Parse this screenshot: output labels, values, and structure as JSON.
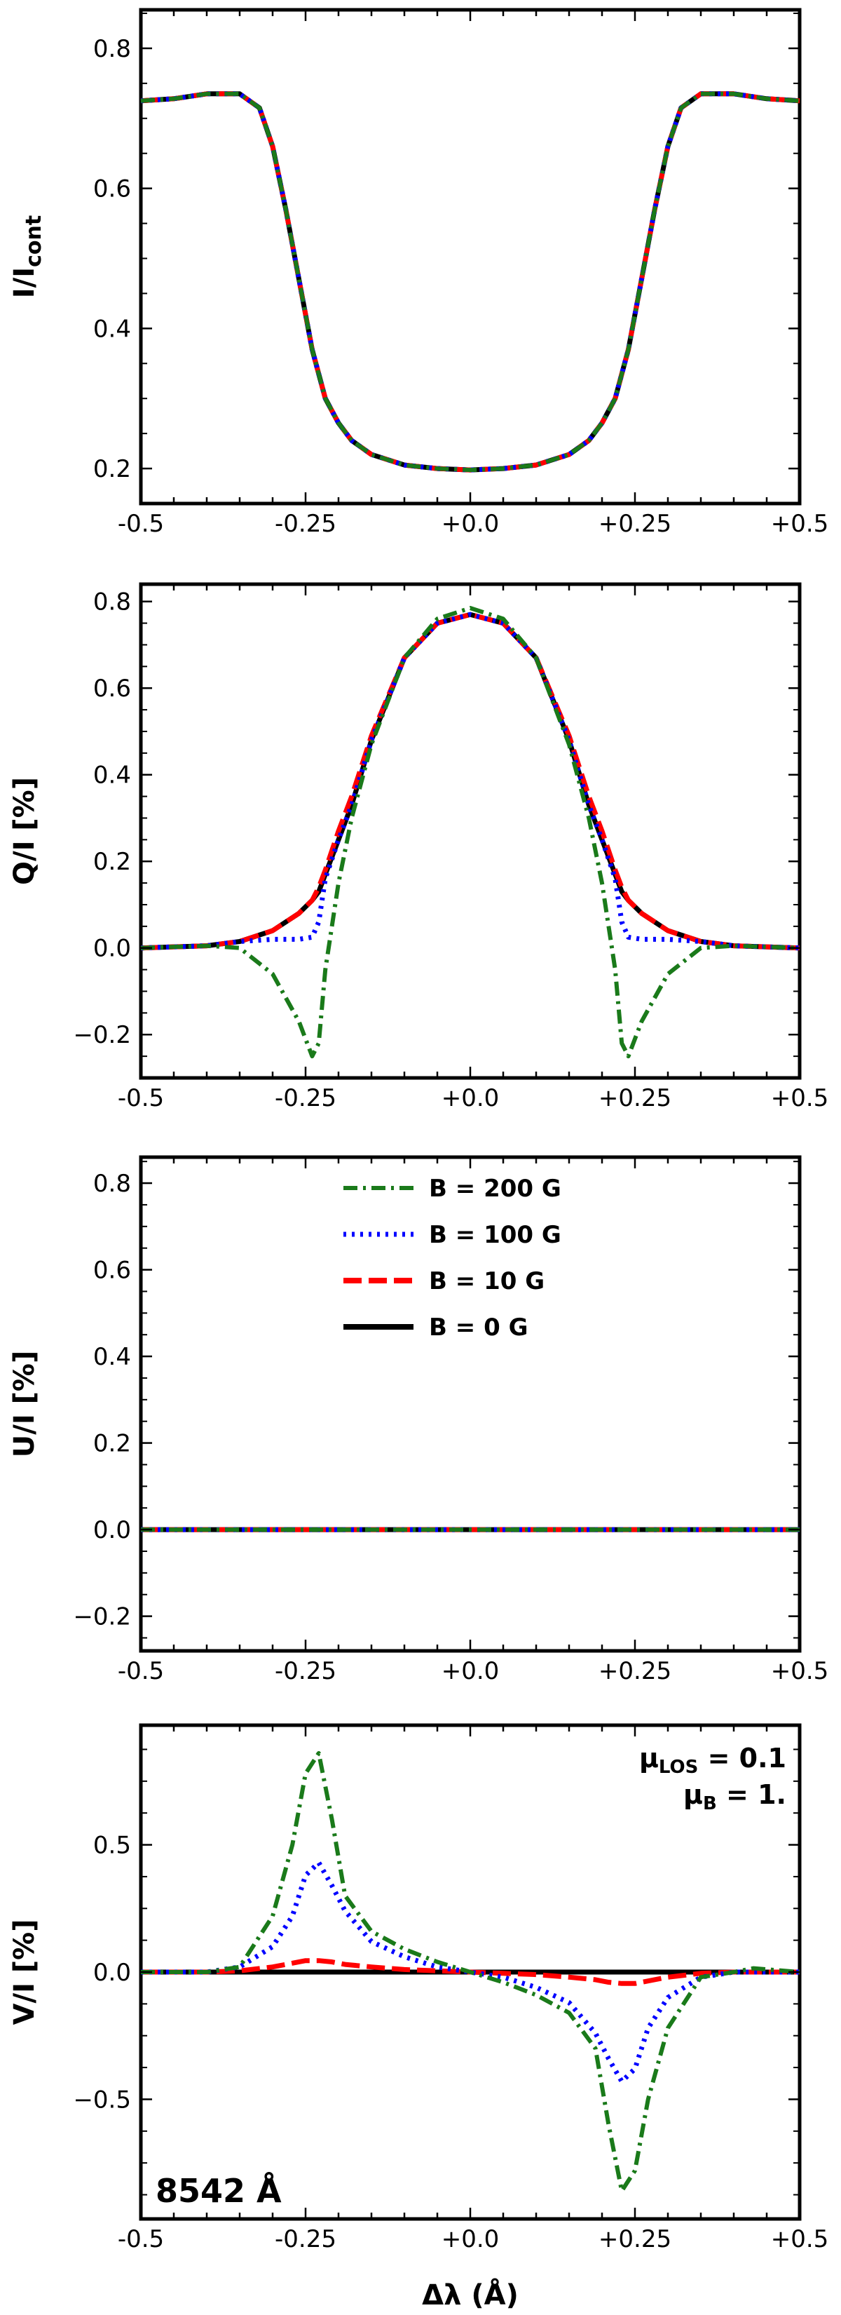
{
  "chart_data": [
    {
      "type": "line",
      "panel": "intensity",
      "ylabel_main": "I/I",
      "ylabel_sub": "cont",
      "xlim": [
        -0.5,
        0.5
      ],
      "ylim": [
        0.15,
        0.855
      ],
      "xticks": [
        "-0.5",
        "-0.25",
        "+0.0",
        "+0.25",
        "+0.5"
      ],
      "yticks": [
        "0.2",
        "0.4",
        "0.6",
        "0.8"
      ],
      "ytick_values": [
        0.2,
        0.4,
        0.6,
        0.8
      ],
      "x": [
        -0.5,
        -0.45,
        -0.4,
        -0.35,
        -0.32,
        -0.3,
        -0.28,
        -0.26,
        -0.25,
        -0.24,
        -0.22,
        -0.2,
        -0.18,
        -0.15,
        -0.1,
        -0.05,
        0.0,
        0.05,
        0.1,
        0.15,
        0.18,
        0.2,
        0.22,
        0.24,
        0.25,
        0.26,
        0.28,
        0.3,
        0.32,
        0.35,
        0.4,
        0.45,
        0.5
      ],
      "series": [
        {
          "name": "B = 0 G",
          "values": [
            0.725,
            0.728,
            0.735,
            0.735,
            0.715,
            0.66,
            0.57,
            0.47,
            0.42,
            0.37,
            0.3,
            0.265,
            0.24,
            0.22,
            0.205,
            0.2,
            0.198,
            0.2,
            0.205,
            0.22,
            0.24,
            0.265,
            0.3,
            0.37,
            0.42,
            0.47,
            0.57,
            0.66,
            0.715,
            0.735,
            0.735,
            0.728,
            0.725
          ]
        },
        {
          "name": "B = 10 G",
          "values": [
            0.725,
            0.728,
            0.735,
            0.735,
            0.715,
            0.66,
            0.57,
            0.47,
            0.42,
            0.37,
            0.3,
            0.265,
            0.24,
            0.22,
            0.205,
            0.2,
            0.198,
            0.2,
            0.205,
            0.22,
            0.24,
            0.265,
            0.3,
            0.37,
            0.42,
            0.47,
            0.57,
            0.66,
            0.715,
            0.735,
            0.735,
            0.728,
            0.725
          ]
        },
        {
          "name": "B = 100 G",
          "values": [
            0.725,
            0.728,
            0.735,
            0.735,
            0.715,
            0.66,
            0.57,
            0.47,
            0.42,
            0.37,
            0.3,
            0.265,
            0.24,
            0.22,
            0.205,
            0.2,
            0.198,
            0.2,
            0.205,
            0.22,
            0.24,
            0.265,
            0.3,
            0.37,
            0.42,
            0.47,
            0.57,
            0.66,
            0.715,
            0.735,
            0.735,
            0.728,
            0.725
          ]
        },
        {
          "name": "B = 200 G",
          "values": [
            0.725,
            0.728,
            0.735,
            0.735,
            0.715,
            0.66,
            0.57,
            0.47,
            0.42,
            0.37,
            0.3,
            0.265,
            0.24,
            0.22,
            0.205,
            0.2,
            0.198,
            0.2,
            0.205,
            0.22,
            0.24,
            0.265,
            0.3,
            0.37,
            0.42,
            0.47,
            0.57,
            0.66,
            0.715,
            0.735,
            0.735,
            0.728,
            0.725
          ]
        }
      ]
    },
    {
      "type": "line",
      "panel": "Q",
      "ylabel": "Q/I [%]",
      "xlim": [
        -0.5,
        0.5
      ],
      "ylim": [
        -0.3,
        0.84
      ],
      "xticks": [
        "-0.5",
        "-0.25",
        "+0.0",
        "+0.25",
        "+0.5"
      ],
      "yticks": [
        "−0.2",
        "0.0",
        "0.2",
        "0.4",
        "0.6",
        "0.8"
      ],
      "ytick_values": [
        -0.2,
        0.0,
        0.2,
        0.4,
        0.6,
        0.8
      ],
      "x": [
        -0.5,
        -0.4,
        -0.35,
        -0.3,
        -0.26,
        -0.24,
        -0.23,
        -0.22,
        -0.2,
        -0.18,
        -0.15,
        -0.1,
        -0.05,
        0.0,
        0.05,
        0.1,
        0.15,
        0.18,
        0.2,
        0.22,
        0.23,
        0.24,
        0.26,
        0.3,
        0.35,
        0.4,
        0.5
      ],
      "series": [
        {
          "name": "B = 0 G",
          "values": [
            0.0,
            0.005,
            0.015,
            0.04,
            0.08,
            0.11,
            0.13,
            0.17,
            0.25,
            0.33,
            0.48,
            0.67,
            0.75,
            0.77,
            0.75,
            0.67,
            0.48,
            0.33,
            0.25,
            0.17,
            0.13,
            0.11,
            0.08,
            0.04,
            0.015,
            0.005,
            0.0
          ]
        },
        {
          "name": "B = 10 G",
          "values": [
            0.0,
            0.005,
            0.015,
            0.04,
            0.08,
            0.11,
            0.14,
            0.18,
            0.27,
            0.35,
            0.49,
            0.67,
            0.75,
            0.77,
            0.75,
            0.67,
            0.49,
            0.35,
            0.27,
            0.18,
            0.14,
            0.11,
            0.08,
            0.04,
            0.015,
            0.005,
            0.0
          ]
        },
        {
          "name": "B = 100 G",
          "values": [
            0.0,
            0.005,
            0.015,
            0.02,
            0.02,
            0.025,
            0.06,
            0.16,
            0.25,
            0.33,
            0.48,
            0.67,
            0.75,
            0.77,
            0.75,
            0.67,
            0.48,
            0.33,
            0.25,
            0.16,
            0.06,
            0.025,
            0.02,
            0.02,
            0.015,
            0.005,
            0.0
          ]
        },
        {
          "name": "B = 200 G",
          "values": [
            0.0,
            0.005,
            0.0,
            -0.06,
            -0.17,
            -0.25,
            -0.22,
            -0.05,
            0.15,
            0.3,
            0.47,
            0.67,
            0.76,
            0.785,
            0.76,
            0.67,
            0.47,
            0.3,
            0.15,
            -0.05,
            -0.22,
            -0.25,
            -0.17,
            -0.06,
            0.0,
            0.005,
            0.0
          ]
        }
      ]
    },
    {
      "type": "line",
      "panel": "U",
      "ylabel": "U/I [%]",
      "xlim": [
        -0.5,
        0.5
      ],
      "ylim": [
        -0.28,
        0.86
      ],
      "xticks": [
        "-0.5",
        "-0.25",
        "+0.0",
        "+0.25",
        "+0.5"
      ],
      "yticks": [
        "−0.2",
        "0.0",
        "0.2",
        "0.4",
        "0.6",
        "0.8"
      ],
      "ytick_values": [
        -0.2,
        0.0,
        0.2,
        0.4,
        0.6,
        0.8
      ],
      "x": [
        -0.5,
        -0.25,
        0.0,
        0.25,
        0.5
      ],
      "series": [
        {
          "name": "B = 200 G",
          "values": [
            0.0,
            0.0,
            0.0,
            0.0,
            0.0
          ]
        },
        {
          "name": "B = 100 G",
          "values": [
            0.0,
            0.0,
            0.0,
            0.0,
            0.0
          ]
        },
        {
          "name": "B = 10 G",
          "values": [
            0.0,
            0.0,
            0.0,
            0.0,
            0.0
          ]
        },
        {
          "name": "B = 0 G",
          "values": [
            0.0,
            0.0,
            0.0,
            0.0,
            0.0
          ]
        }
      ],
      "legend": [
        "B = 200 G",
        "B = 100 G",
        "B = 10 G",
        "B = 0 G"
      ]
    },
    {
      "type": "line",
      "panel": "V",
      "ylabel": "V/I [%]",
      "xlabel": "Δλ (Å)",
      "xlim": [
        -0.5,
        0.5
      ],
      "ylim": [
        -0.97,
        0.97
      ],
      "xticks": [
        "-0.5",
        "-0.25",
        "+0.0",
        "+0.25",
        "+0.5"
      ],
      "yticks": [
        "−0.5",
        "0.0",
        "0.5"
      ],
      "ytick_values": [
        -0.5,
        0.0,
        0.5
      ],
      "x": [
        -0.5,
        -0.4,
        -0.35,
        -0.3,
        -0.27,
        -0.25,
        -0.23,
        -0.21,
        -0.19,
        -0.15,
        -0.1,
        -0.05,
        0.0,
        0.05,
        0.1,
        0.15,
        0.19,
        0.21,
        0.23,
        0.25,
        0.27,
        0.3,
        0.35,
        0.4,
        0.43,
        0.5
      ],
      "series": [
        {
          "name": "B = 0 G",
          "values": [
            0,
            0,
            0,
            0,
            0,
            0,
            0,
            0,
            0,
            0,
            0,
            0,
            0,
            0,
            0,
            0,
            0,
            0,
            0,
            0,
            0,
            0,
            0,
            0,
            0,
            0
          ]
        },
        {
          "name": "B = 10 G",
          "values": [
            0.0,
            0.0,
            0.005,
            0.02,
            0.035,
            0.045,
            0.045,
            0.04,
            0.03,
            0.02,
            0.01,
            0.005,
            0.0,
            -0.005,
            -0.01,
            -0.02,
            -0.03,
            -0.04,
            -0.045,
            -0.045,
            -0.035,
            -0.02,
            -0.005,
            0.0,
            0.0,
            0.0
          ]
        },
        {
          "name": "B = 100 G",
          "values": [
            0.0,
            0.0,
            0.02,
            0.1,
            0.22,
            0.38,
            0.43,
            0.34,
            0.24,
            0.12,
            0.06,
            0.02,
            0.0,
            -0.02,
            -0.06,
            -0.12,
            -0.24,
            -0.34,
            -0.43,
            -0.38,
            -0.22,
            -0.1,
            -0.02,
            0.0,
            0.0,
            0.0
          ]
        },
        {
          "name": "B = 200 G",
          "values": [
            0.0,
            0.0,
            0.02,
            0.22,
            0.5,
            0.78,
            0.86,
            0.6,
            0.3,
            0.16,
            0.09,
            0.04,
            0.0,
            -0.04,
            -0.09,
            -0.16,
            -0.3,
            -0.6,
            -0.86,
            -0.78,
            -0.5,
            -0.22,
            -0.02,
            0.0,
            0.015,
            0.0
          ]
        }
      ],
      "annotations": {
        "mu_los": "μ",
        "mu_los_sub": "LOS",
        "mu_los_val": " = 0.1",
        "mu_b": "μ",
        "mu_b_sub": "B",
        "mu_b_val": " = 1.",
        "wavelength": "8542 Å"
      }
    }
  ],
  "styles": {
    "B = 0 G": {
      "color": "#000000",
      "dash": "",
      "width": 7
    },
    "B = 10 G": {
      "color": "#ff0000",
      "dash": "26 10",
      "width": 7
    },
    "B = 100 G": {
      "color": "#0000ff",
      "dash": "4 8",
      "width": 7
    },
    "B = 200 G": {
      "color": "#1a7a1a",
      "dash": "20 8 4 8",
      "width": 6
    }
  }
}
